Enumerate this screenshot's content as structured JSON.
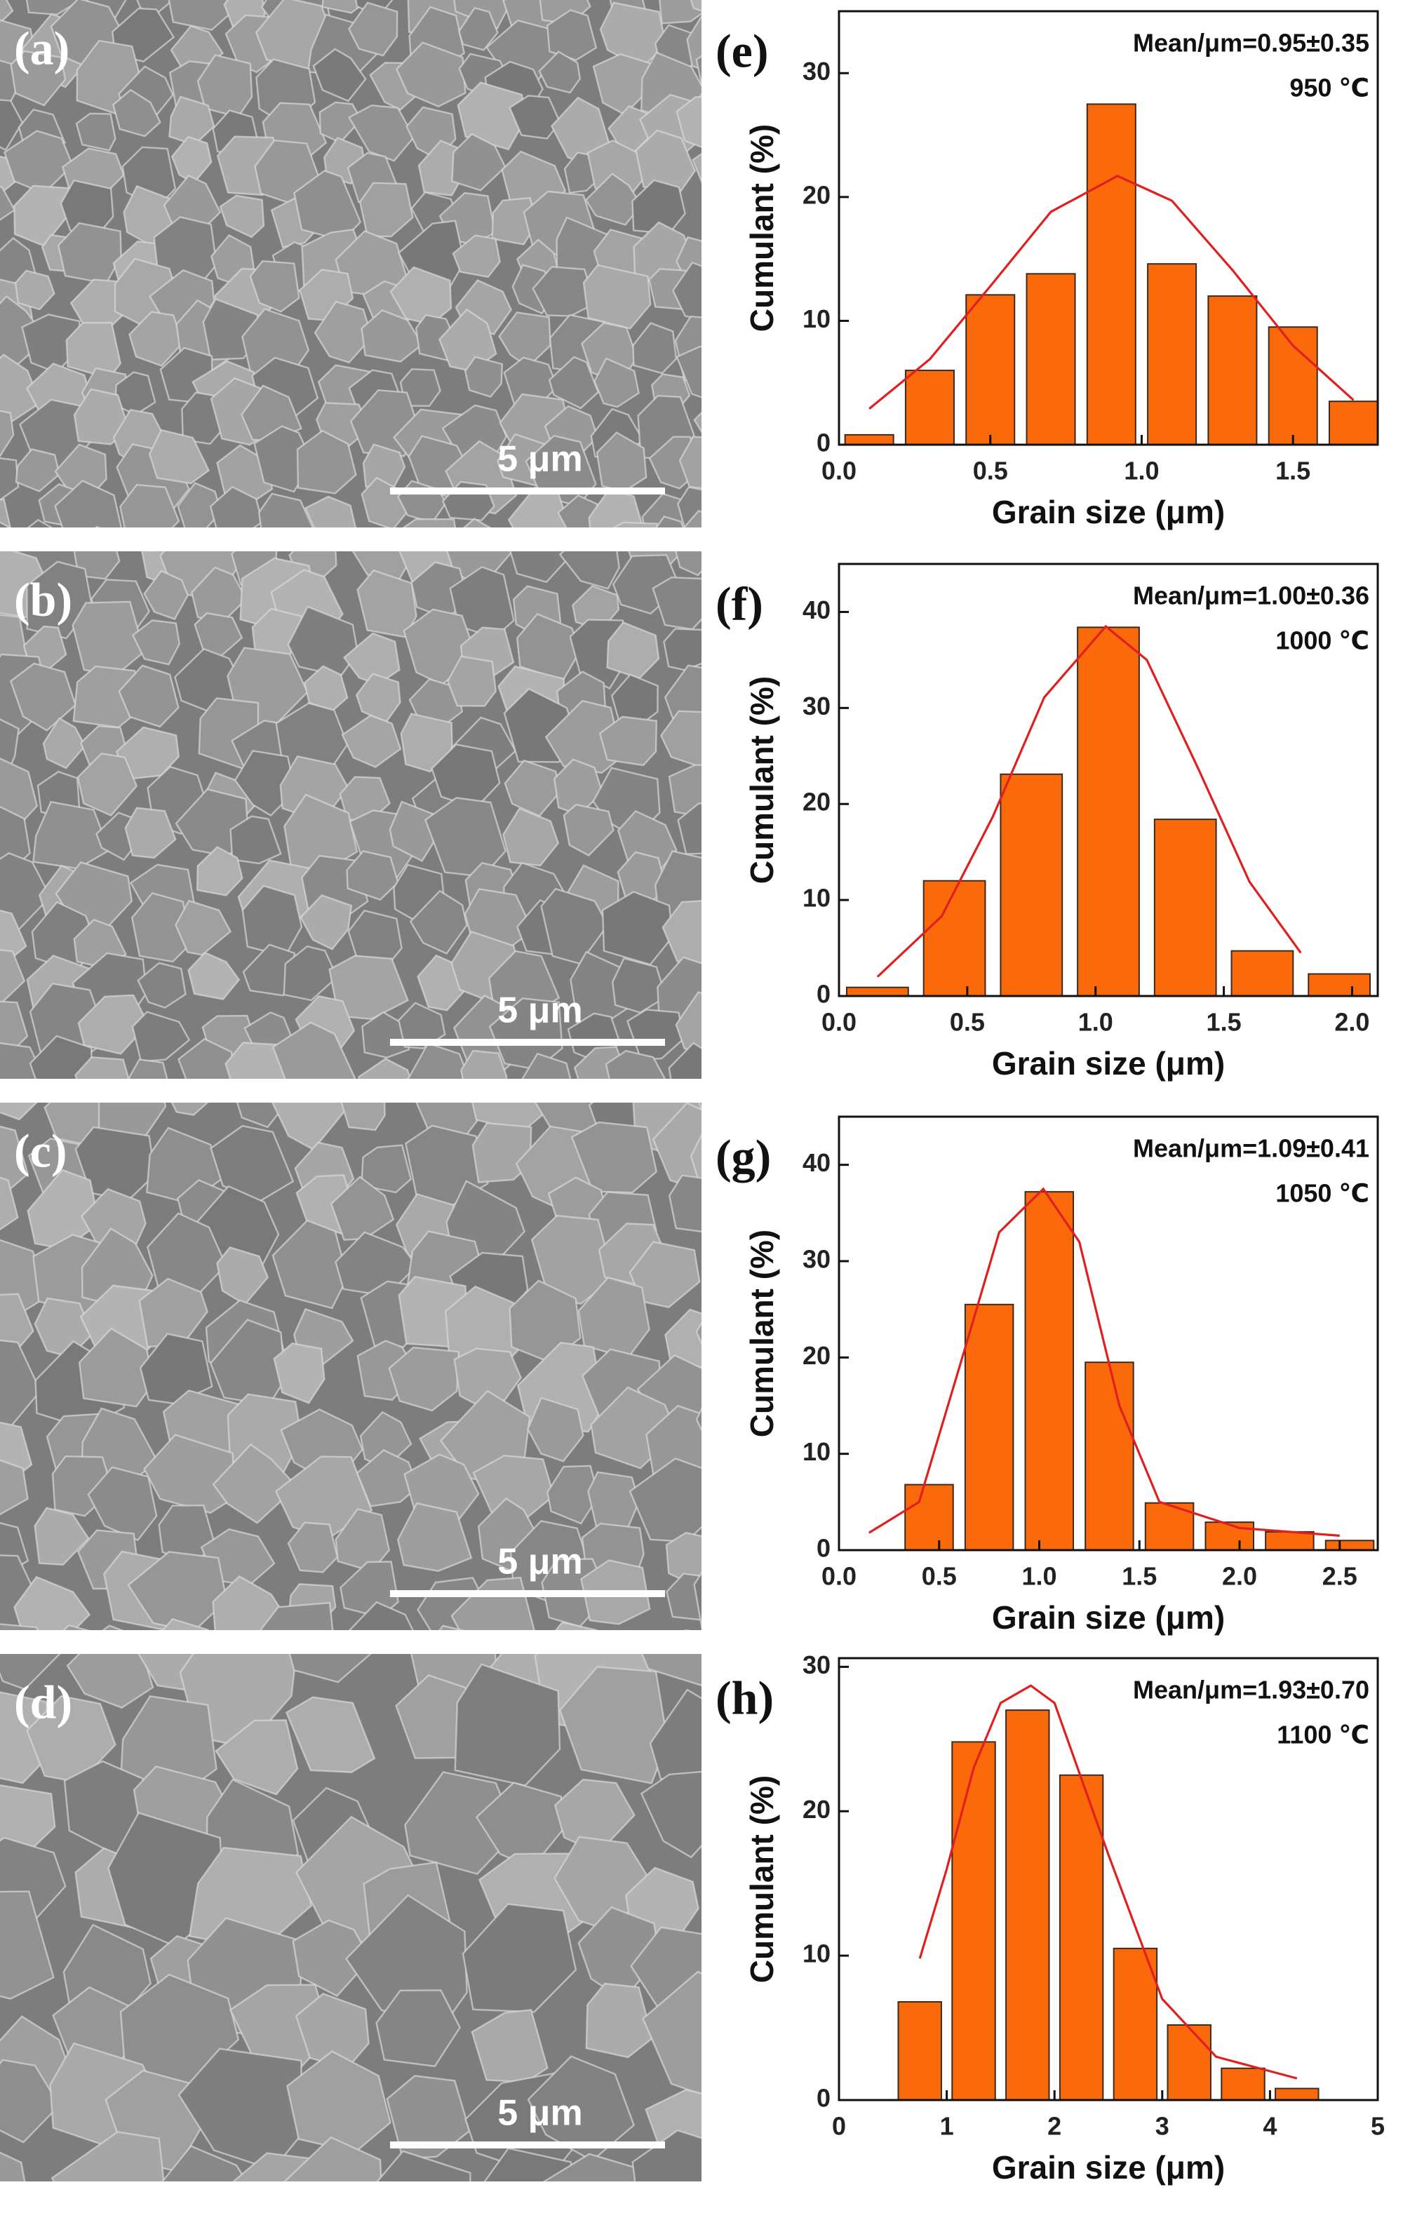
{
  "images": [
    {
      "label": "(a)",
      "scale_bar": "5 μm"
    },
    {
      "label": "(b)",
      "scale_bar": "5 μm"
    },
    {
      "label": "(c)",
      "scale_bar": "5 μm"
    },
    {
      "label": "(d)",
      "scale_bar": "5 μm"
    }
  ],
  "chart_data": [
    {
      "type": "histogram",
      "panel_label": "(e)",
      "annotations": [
        "Mean/μm=0.95±0.35",
        "950 ℃"
      ],
      "x_label": "Grain size (μm)",
      "y_label": "Cumulant (%)",
      "color": "#fa6a0a",
      "bins": [
        0,
        0.2,
        0.4,
        0.6,
        0.8,
        1.0,
        1.2,
        1.4,
        1.6,
        1.8
      ],
      "values": [
        0.8,
        6.0,
        12.1,
        13.8,
        27.5,
        14.6,
        12.0,
        9.5,
        3.5
      ],
      "fit": {
        "color": "#e02020",
        "x": [
          0.1,
          0.3,
          0.5,
          0.7,
          0.92,
          1.1,
          1.3,
          1.5,
          1.7
        ],
        "y": [
          2.9,
          6.9,
          12.8,
          18.8,
          21.7,
          19.7,
          14.1,
          8.0,
          3.6
        ]
      },
      "xlim": [
        0,
        1.78
      ],
      "ylim": [
        0,
        35
      ],
      "xticks": [
        {
          "value": 0,
          "label": "0.0"
        },
        0.5,
        {
          "value": 1,
          "label": "1.0"
        },
        1.5
      ],
      "yticks": [
        0,
        10,
        20,
        30
      ]
    },
    {
      "type": "histogram",
      "panel_label": "(f)",
      "annotations": [
        "Mean/μm=1.00±0.36",
        "1000 ℃"
      ],
      "x_label": "Grain size (μm)",
      "y_label": "Cumulant (%)",
      "color": "#fa6a0a",
      "bins": [
        0,
        0.3,
        0.6,
        0.9,
        1.2,
        1.5,
        1.8,
        2.1
      ],
      "values": [
        0.9,
        12.0,
        23.1,
        38.4,
        18.4,
        4.7,
        2.3
      ],
      "fit": {
        "color": "#e02020",
        "x": [
          0.15,
          0.4,
          0.6,
          0.8,
          1.04,
          1.2,
          1.4,
          1.6,
          1.8
        ],
        "y": [
          2.0,
          8.3,
          18.7,
          31.1,
          38.5,
          35.0,
          23.7,
          11.9,
          4.5
        ]
      },
      "xlim": [
        0,
        2.1
      ],
      "ylim": [
        0,
        45
      ],
      "xticks": [
        {
          "value": 0,
          "label": "0.0"
        },
        0.5,
        {
          "value": 1,
          "label": "1.0"
        },
        1.5,
        {
          "value": 2,
          "label": "2.0"
        }
      ],
      "yticks": [
        0,
        10,
        20,
        30,
        40
      ]
    },
    {
      "type": "histogram",
      "panel_label": "(g)",
      "annotations": [
        "Mean/μm=1.09±0.41",
        "1050 ℃"
      ],
      "x_label": "Grain size (μm)",
      "y_label": "Cumulant (%)",
      "color": "#fa6a0a",
      "bins": [
        0.3,
        0.6,
        0.9,
        1.2,
        1.5,
        1.8,
        2.1,
        2.4,
        2.7
      ],
      "values": [
        6.8,
        25.5,
        37.2,
        19.5,
        4.9,
        2.9,
        1.9,
        1.0
      ],
      "fit": {
        "color": "#e02020",
        "x": [
          0.15,
          0.4,
          0.63,
          0.8,
          1.02,
          1.2,
          1.4,
          1.6,
          2.0,
          2.5
        ],
        "y": [
          1.8,
          5,
          21,
          33,
          37.5,
          32,
          15,
          5,
          2.3,
          1.5
        ]
      },
      "xlim": [
        0,
        2.69
      ],
      "ylim": [
        0,
        45
      ],
      "xticks": [
        {
          "value": 0,
          "label": "0.0"
        },
        0.5,
        {
          "value": 1,
          "label": "1.0"
        },
        1.5,
        {
          "value": 2,
          "label": "2.0"
        },
        2.5
      ],
      "yticks": [
        0,
        10,
        20,
        30,
        40
      ]
    },
    {
      "type": "histogram",
      "panel_label": "(h)",
      "annotations": [
        "Mean/μm=1.93±0.70",
        "1100 ℃"
      ],
      "x_label": "Grain size (μm)",
      "y_label": "Cumulant (%)",
      "color": "#fa6a0a",
      "bins": [
        0.5,
        1.0,
        1.5,
        2.0,
        2.5,
        3.0,
        3.5,
        4.0,
        4.5
      ],
      "values": [
        6.8,
        24.8,
        27.0,
        22.5,
        10.5,
        5.2,
        2.2,
        0.8
      ],
      "fit": {
        "color": "#e02020",
        "x": [
          0.75,
          1.0,
          1.25,
          1.5,
          1.78,
          2.0,
          2.5,
          3.0,
          3.5,
          4.25
        ],
        "y": [
          9.8,
          16,
          23,
          27.5,
          28.7,
          27.5,
          17,
          7,
          3,
          1.5
        ]
      },
      "xlim": [
        0,
        5
      ],
      "ylim": [
        0,
        30.6
      ],
      "xticks": [
        0,
        1,
        2,
        3,
        4,
        5
      ],
      "yticks": [
        0,
        10,
        20,
        30
      ]
    }
  ]
}
